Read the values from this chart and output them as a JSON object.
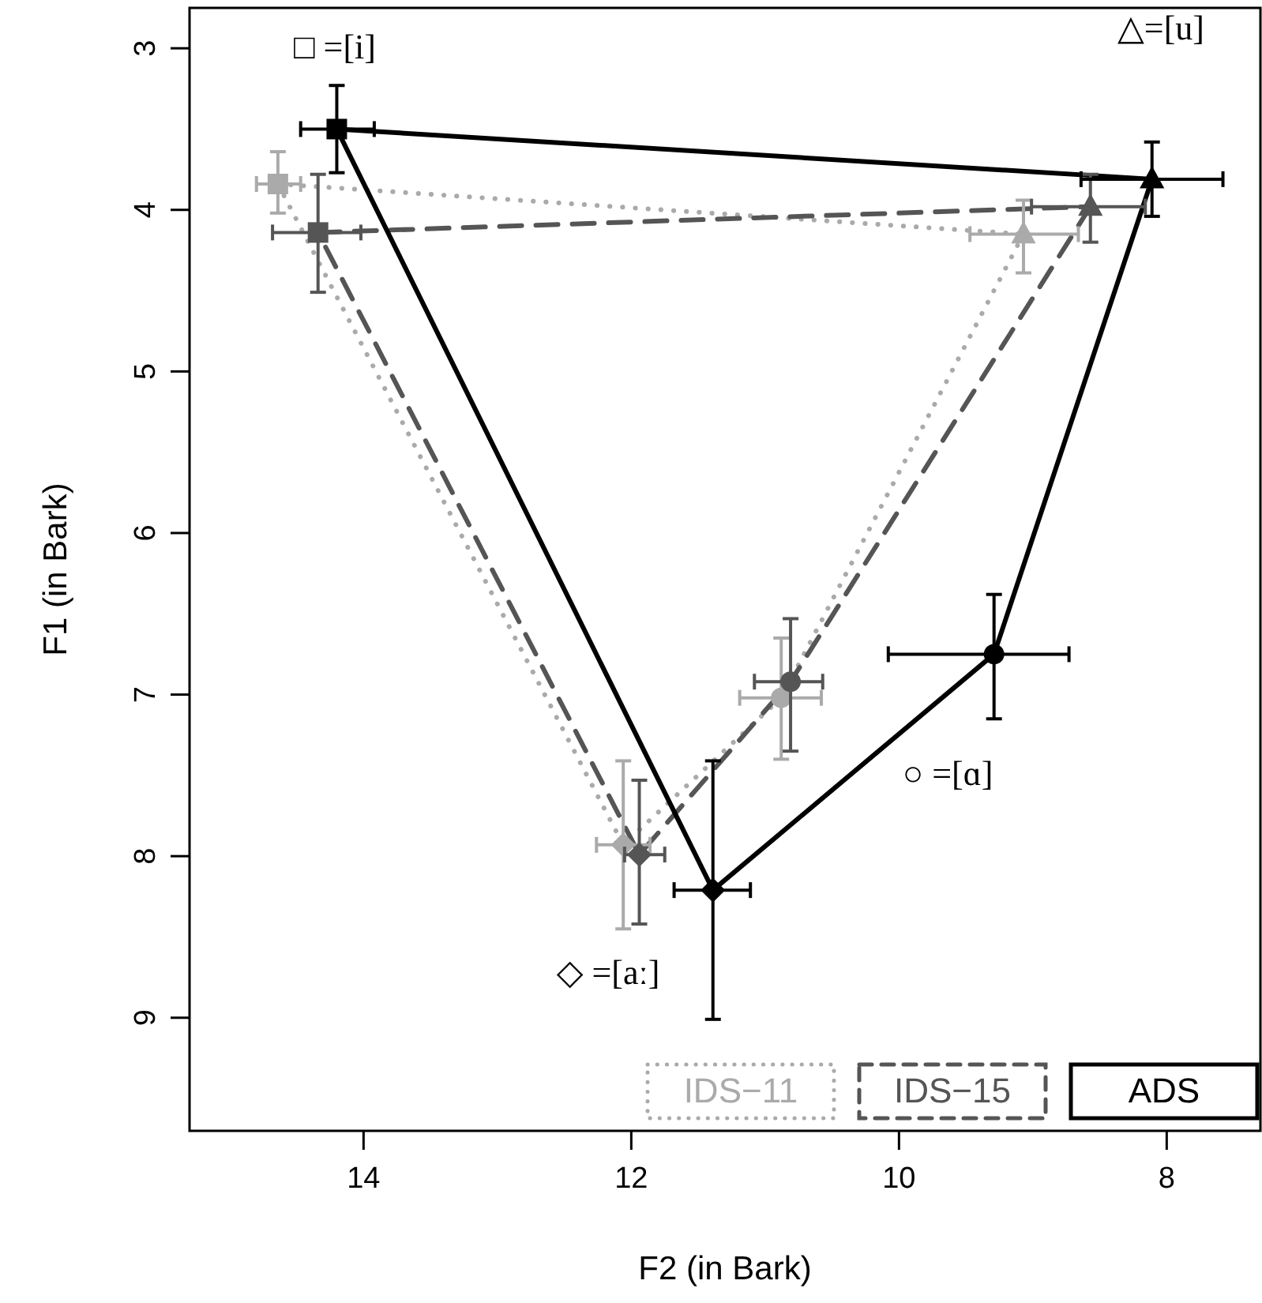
{
  "chart_data": {
    "type": "line",
    "xlabel": "F2 (in Bark)",
    "ylabel": "F1 (in Bark)",
    "xlim": [
      15.3,
      7.3
    ],
    "ylim": [
      9.7,
      2.75
    ],
    "xticks": [
      14,
      12,
      10,
      8
    ],
    "yticks": [
      3,
      4,
      5,
      6,
      7,
      8,
      9
    ],
    "legend": "bottom right",
    "series": [
      {
        "name": "IDS−11",
        "color": "#aaaaaa",
        "line_style": "dotted",
        "marker": [
          "triangle",
          "circle",
          "diamond",
          "square"
        ],
        "x": [
          9.07,
          10.88,
          12.06,
          14.64
        ],
        "values": [
          4.15,
          7.02,
          7.93,
          3.84
        ],
        "errors": [
          [
            3.94,
            4.39
          ],
          [
            6.65,
            7.4
          ],
          [
            7.41,
            8.45
          ],
          [
            3.64,
            4.02
          ]
        ],
        "xerrors": [
          [
            8.66,
            9.47
          ],
          [
            10.58,
            11.19
          ],
          [
            11.86,
            12.26
          ],
          [
            14.47,
            14.8
          ]
        ]
      },
      {
        "color": "#aaaaaa",
        "line_style": "dotted",
        "marker": "none",
        "x": [
          14.64,
          9.07
        ],
        "values": [
          3.84,
          4.15
        ]
      },
      {
        "name": "IDS−15",
        "color": "#555555",
        "line_style": "dashed",
        "marker": [
          "triangle",
          "circle",
          "diamond",
          "square"
        ],
        "x": [
          8.57,
          10.81,
          11.94,
          14.34
        ],
        "values": [
          3.98,
          6.92,
          7.99,
          4.14
        ],
        "errors": [
          [
            3.78,
            4.2
          ],
          [
            6.53,
            7.35
          ],
          [
            7.53,
            8.42
          ],
          [
            3.78,
            4.51
          ]
        ],
        "xerrors": [
          [
            8.16,
            9.01
          ],
          [
            10.57,
            11.08
          ],
          [
            11.75,
            12.05
          ],
          [
            14.02,
            14.68
          ]
        ]
      },
      {
        "color": "#555555",
        "line_style": "dashed",
        "marker": "none",
        "x": [
          14.34,
          8.57
        ],
        "values": [
          4.14,
          3.98
        ]
      },
      {
        "name": "ADS",
        "color": "#000000",
        "line_style": "solid",
        "marker": [
          "triangle",
          "circle",
          "diamond",
          "square"
        ],
        "x": [
          8.11,
          9.29,
          11.39,
          14.2
        ],
        "values": [
          3.81,
          6.75,
          8.21,
          3.5
        ],
        "errors": [
          [
            3.58,
            4.04
          ],
          [
            6.38,
            7.15
          ],
          [
            7.41,
            9.01
          ],
          [
            3.23,
            3.77
          ]
        ],
        "xerrors": [
          [
            7.58,
            8.64
          ],
          [
            8.73,
            10.08
          ],
          [
            11.11,
            11.68
          ],
          [
            13.92,
            14.47
          ]
        ]
      },
      {
        "color": "#000000",
        "line_style": "solid",
        "marker": "none",
        "x": [
          14.2,
          8.11
        ],
        "values": [
          3.5,
          3.81
        ]
      }
    ],
    "annotations": [
      "□ =[i]",
      "△=[u]",
      "○ =[ɑ]",
      "◇ =[aː]"
    ]
  }
}
